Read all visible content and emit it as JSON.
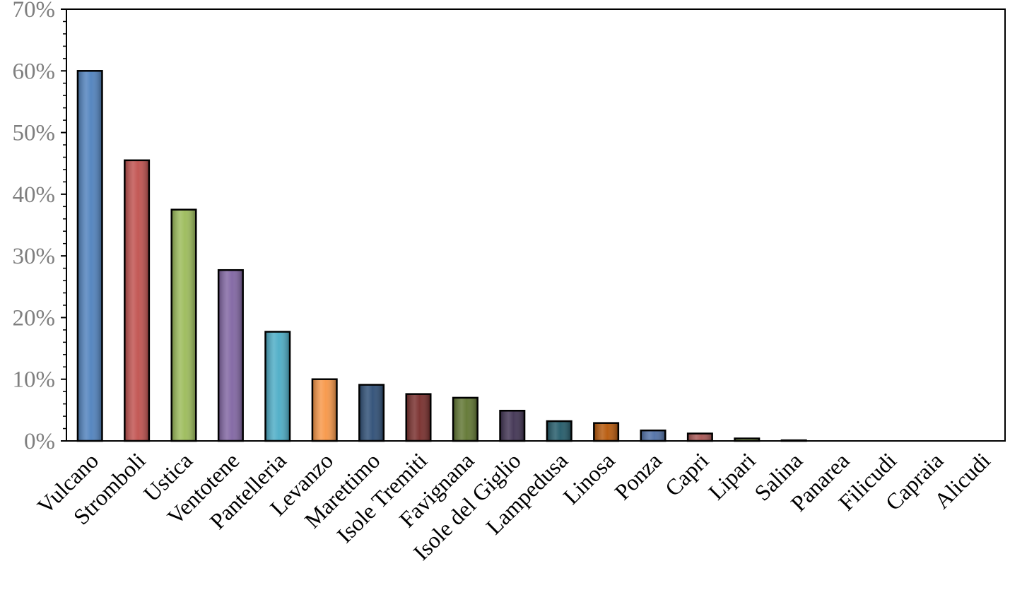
{
  "chart_data": {
    "type": "bar",
    "title": "",
    "xlabel": "",
    "ylabel": "",
    "ylim": [
      0,
      70
    ],
    "y_unit": "%",
    "y_ticks": [
      "0%",
      "10%",
      "20%",
      "30%",
      "40%",
      "50%",
      "60%",
      "70%"
    ],
    "grid": false,
    "legend": "none",
    "categories": [
      "Vulcano",
      "Stromboli",
      "Ustica",
      "Ventotene",
      "Pantelleria",
      "Levanzo",
      "Marettimo",
      "Isole Tremiti",
      "Favignana",
      "Isole del Giglio",
      "Lampedusa",
      "Linosa",
      "Ponza",
      "Capri",
      "Lipari",
      "Salina",
      "Panarea",
      "Filicudi",
      "Capraia",
      "Alicudi"
    ],
    "values": [
      60,
      45.5,
      37.5,
      27.7,
      17.7,
      10,
      9.1,
      7.6,
      7,
      4.9,
      3.2,
      2.9,
      1.7,
      1.2,
      0.4,
      0.1,
      0,
      0,
      0,
      0
    ],
    "colors": [
      "#4f81bd",
      "#c0504d",
      "#9bbb59",
      "#8064a2",
      "#4bacc6",
      "#f79646",
      "#2c4d75",
      "#772c2a",
      "#5f7530",
      "#3f3151",
      "#215968",
      "#b65708",
      "#4f6fa5",
      "#a85654",
      "#8aa552",
      "#7a67a0",
      "#4ba3bd",
      "#e8913d",
      "#2c4d75",
      "#772c2a"
    ]
  }
}
